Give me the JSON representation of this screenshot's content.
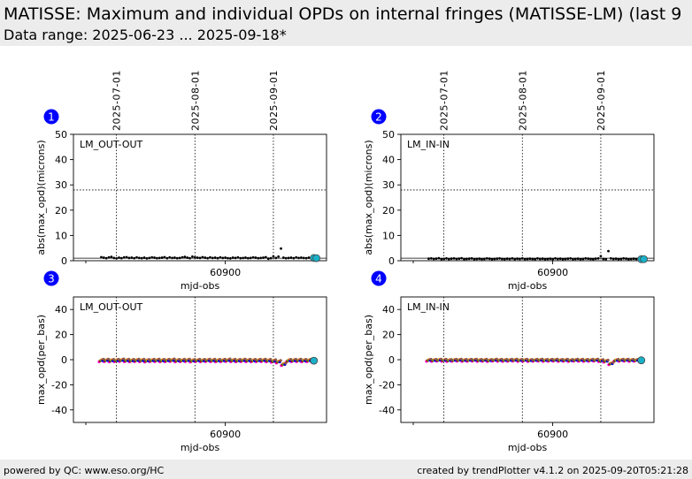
{
  "header": {
    "title": "MATISSE: Maximum and individual OPDs on internal fringes (MATISSE-LM) (last 9",
    "subtitle": "Data range: 2025-06-23 ... 2025-09-18*"
  },
  "footer": {
    "left": "powered by QC: www.eso.org/HC",
    "right": "created by trendPlotter v4.1.2 on 2025-09-20T05:21:28"
  },
  "colors": {
    "data_points": "#000000",
    "latest_marker": "#1ab0c8",
    "panel_badge": "#0000ff",
    "series_colors": [
      "#ff00ff",
      "#cc0000",
      "#2ca02c",
      "#ff7f0e",
      "#0000cc",
      "#8c564b"
    ]
  },
  "chart_data": [
    {
      "panel": "1",
      "type": "scatter",
      "label": "LM_OUT-OUT",
      "xlabel": "mjd-obs",
      "ylabel": "abs(max_opd)(microns)",
      "xlim": [
        60840,
        60940
      ],
      "ylim": [
        0,
        50
      ],
      "yticks": [
        0,
        10,
        20,
        30,
        40,
        50
      ],
      "xticks": [
        60900
      ],
      "threshold_line": 28,
      "reference_line": 1,
      "date_markers": [
        {
          "x": 60857,
          "label": "2025-07-01"
        },
        {
          "x": 60888,
          "label": "2025-08-01"
        },
        {
          "x": 60919,
          "label": "2025-09-01"
        }
      ],
      "x": [
        60851,
        60852,
        60853,
        60854,
        60855,
        60856,
        60857,
        60858,
        60859,
        60860,
        60861,
        60862,
        60863,
        60864,
        60865,
        60866,
        60867,
        60868,
        60869,
        60870,
        60871,
        60872,
        60873,
        60874,
        60875,
        60876,
        60877,
        60878,
        60879,
        60880,
        60881,
        60882,
        60883,
        60884,
        60885,
        60886,
        60887,
        60888,
        60889,
        60890,
        60891,
        60892,
        60893,
        60894,
        60895,
        60896,
        60897,
        60898,
        60899,
        60900,
        60901,
        60902,
        60903,
        60904,
        60905,
        60906,
        60907,
        60908,
        60909,
        60910,
        60911,
        60912,
        60913,
        60914,
        60915,
        60916,
        60917,
        60918,
        60919,
        60920,
        60921,
        60922,
        60923,
        60924,
        60925,
        60926,
        60927,
        60928,
        60929,
        60930,
        60931,
        60932,
        60933,
        60934,
        60935,
        60936
      ],
      "values": [
        1.4,
        1.2,
        1.0,
        1.3,
        1.5,
        1.1,
        0.9,
        1.2,
        1.0,
        1.3,
        1.4,
        1.1,
        1.2,
        1.0,
        1.3,
        1.1,
        1.0,
        1.2,
        0.9,
        1.1,
        1.3,
        1.2,
        1.0,
        1.1,
        1.2,
        1.4,
        1.0,
        1.3,
        1.1,
        1.2,
        1.0,
        1.1,
        1.3,
        1.5,
        1.2,
        1.0,
        1.6,
        1.3,
        1.2,
        1.1,
        1.4,
        1.2,
        1.0,
        1.3,
        1.1,
        1.2,
        1.0,
        1.3,
        1.1,
        1.2,
        1.0,
        0.9,
        1.2,
        1.1,
        1.3,
        1.0,
        1.1,
        1.2,
        1.0,
        1.1,
        1.3,
        1.2,
        1.0,
        1.1,
        1.2,
        1.4,
        0.8,
        1.0,
        1.7,
        1.1,
        1.6,
        4.8,
        1.2,
        1.0,
        1.1,
        1.2,
        1.0,
        1.3,
        1.1,
        1.2,
        1.1,
        1.0,
        1.2,
        1.1,
        1.0,
        1.2
      ],
      "latest": [
        {
          "x": 60935,
          "y": 1.1
        },
        {
          "x": 60936,
          "y": 1.0
        }
      ]
    },
    {
      "panel": "2",
      "type": "scatter",
      "label": "LM_IN-IN",
      "xlabel": "mjd-obs",
      "ylabel": "abs(max_opd)(microns)",
      "xlim": [
        60840,
        60940
      ],
      "ylim": [
        0,
        50
      ],
      "yticks": [
        0,
        10,
        20,
        30,
        40,
        50
      ],
      "xticks": [
        60900
      ],
      "threshold_line": 28,
      "reference_line": 1,
      "date_markers": [
        {
          "x": 60857,
          "label": "2025-07-01"
        },
        {
          "x": 60888,
          "label": "2025-08-01"
        },
        {
          "x": 60919,
          "label": "2025-09-01"
        }
      ],
      "x": [
        60851,
        60852,
        60853,
        60854,
        60855,
        60856,
        60857,
        60858,
        60859,
        60860,
        60861,
        60862,
        60863,
        60864,
        60865,
        60866,
        60867,
        60868,
        60869,
        60870,
        60871,
        60872,
        60873,
        60874,
        60875,
        60876,
        60877,
        60878,
        60879,
        60880,
        60881,
        60882,
        60883,
        60884,
        60885,
        60886,
        60887,
        60888,
        60889,
        60890,
        60891,
        60892,
        60893,
        60894,
        60895,
        60896,
        60897,
        60898,
        60899,
        60900,
        60901,
        60902,
        60903,
        60904,
        60905,
        60906,
        60907,
        60908,
        60909,
        60910,
        60911,
        60912,
        60913,
        60914,
        60915,
        60916,
        60917,
        60918,
        60919,
        60920,
        60921,
        60922,
        60923,
        60924,
        60925,
        60926,
        60927,
        60928,
        60929,
        60930,
        60931,
        60932,
        60933,
        60934,
        60935,
        60936
      ],
      "values": [
        0.8,
        0.9,
        0.7,
        0.8,
        1.0,
        0.6,
        0.7,
        0.9,
        0.6,
        0.8,
        0.9,
        0.7,
        0.8,
        1.0,
        0.6,
        0.7,
        0.8,
        0.9,
        0.6,
        0.7,
        0.8,
        0.6,
        0.7,
        0.9,
        0.8,
        0.6,
        0.7,
        0.8,
        0.9,
        0.7,
        0.6,
        0.8,
        0.7,
        0.9,
        0.6,
        0.8,
        0.7,
        0.9,
        0.6,
        0.7,
        0.8,
        0.7,
        0.6,
        0.9,
        0.7,
        0.8,
        0.6,
        0.7,
        0.8,
        0.6,
        0.9,
        0.7,
        0.8,
        0.6,
        0.7,
        0.8,
        0.9,
        0.6,
        0.7,
        0.8,
        0.6,
        0.7,
        0.9,
        0.8,
        0.7,
        0.6,
        0.8,
        0.9,
        1.8,
        0.7,
        0.6,
        3.8,
        0.9,
        0.7,
        0.8,
        0.6,
        0.7,
        0.9,
        0.8,
        0.6,
        0.7,
        0.8,
        0.7,
        0.6,
        0.8,
        0.7
      ],
      "latest": [
        {
          "x": 60935,
          "y": 0.6
        },
        {
          "x": 60936,
          "y": 0.6
        }
      ]
    },
    {
      "panel": "3",
      "type": "scatter",
      "label": "LM_OUT-OUT",
      "xlabel": "mjd-obs",
      "ylabel": "max_opd(per_bas)",
      "xlim": [
        60840,
        60940
      ],
      "ylim": [
        -50,
        50
      ],
      "yticks": [
        -40,
        -20,
        0,
        20,
        40
      ],
      "xticks": [
        60900
      ],
      "date_markers": [
        {
          "x": 60857,
          "label": "2025-07-01"
        },
        {
          "x": 60888,
          "label": "2025-08-01"
        },
        {
          "x": 60919,
          "label": "2025-09-01"
        }
      ],
      "series_offsets": [
        -1.2,
        -0.6,
        0.0,
        0.5,
        -0.3,
        0.9
      ],
      "x": [
        60851,
        60853,
        60855,
        60857,
        60859,
        60861,
        60863,
        60865,
        60867,
        60869,
        60871,
        60873,
        60875,
        60877,
        60879,
        60881,
        60883,
        60885,
        60887,
        60889,
        60891,
        60893,
        60895,
        60897,
        60899,
        60901,
        60903,
        60905,
        60907,
        60909,
        60911,
        60913,
        60915,
        60917,
        60919,
        60921,
        60923,
        60925,
        60927,
        60929,
        60931,
        60933,
        60935
      ],
      "values": [
        -0.5,
        -0.4,
        -0.6,
        -0.5,
        -0.3,
        -0.5,
        -0.6,
        -0.4,
        -0.5,
        -0.7,
        -0.5,
        -0.4,
        -0.6,
        -0.5,
        -0.3,
        -0.6,
        -0.5,
        -0.4,
        -0.7,
        -0.5,
        -0.6,
        -0.4,
        -0.5,
        -0.6,
        -0.5,
        -0.3,
        -0.5,
        -0.6,
        -0.4,
        -0.5,
        -0.6,
        -0.5,
        -0.4,
        -0.6,
        -0.9,
        -1.5,
        -3.5,
        -0.6,
        -0.5,
        -0.4,
        -0.6,
        -0.5,
        -0.8
      ],
      "latest": [
        {
          "x": 60935,
          "y": -0.8
        }
      ]
    },
    {
      "panel": "4",
      "type": "scatter",
      "label": "LM_IN-IN",
      "xlabel": "mjd-obs",
      "ylabel": "max_opd(per_bas)",
      "xlim": [
        60840,
        60940
      ],
      "ylim": [
        -50,
        50
      ],
      "yticks": [
        -40,
        -20,
        0,
        20,
        40
      ],
      "xticks": [
        60900
      ],
      "date_markers": [
        {
          "x": 60857,
          "label": "2025-07-01"
        },
        {
          "x": 60888,
          "label": "2025-08-01"
        },
        {
          "x": 60919,
          "label": "2025-09-01"
        }
      ],
      "series_offsets": [
        -1.0,
        -0.5,
        0.0,
        0.4,
        -0.2,
        0.7
      ],
      "x": [
        60851,
        60853,
        60855,
        60857,
        60859,
        60861,
        60863,
        60865,
        60867,
        60869,
        60871,
        60873,
        60875,
        60877,
        60879,
        60881,
        60883,
        60885,
        60887,
        60889,
        60891,
        60893,
        60895,
        60897,
        60899,
        60901,
        60903,
        60905,
        60907,
        60909,
        60911,
        60913,
        60915,
        60917,
        60919,
        60921,
        60923,
        60925,
        60927,
        60929,
        60931,
        60933,
        60935
      ],
      "values": [
        -0.3,
        -0.4,
        -0.2,
        -0.3,
        -0.5,
        -0.3,
        -0.2,
        -0.4,
        -0.3,
        -0.2,
        -0.4,
        -0.3,
        -0.5,
        -0.2,
        -0.3,
        -0.4,
        -0.3,
        -0.2,
        -0.4,
        -0.3,
        -0.5,
        -0.3,
        -0.2,
        -0.4,
        -0.3,
        -0.2,
        -0.4,
        -0.3,
        -0.5,
        -0.2,
        -0.3,
        -0.4,
        -0.3,
        -0.2,
        -0.6,
        -1.0,
        -3.0,
        -0.4,
        -0.3,
        -0.2,
        -0.4,
        -0.3,
        -0.5
      ],
      "latest": [
        {
          "x": 60935,
          "y": -0.5
        }
      ]
    }
  ]
}
